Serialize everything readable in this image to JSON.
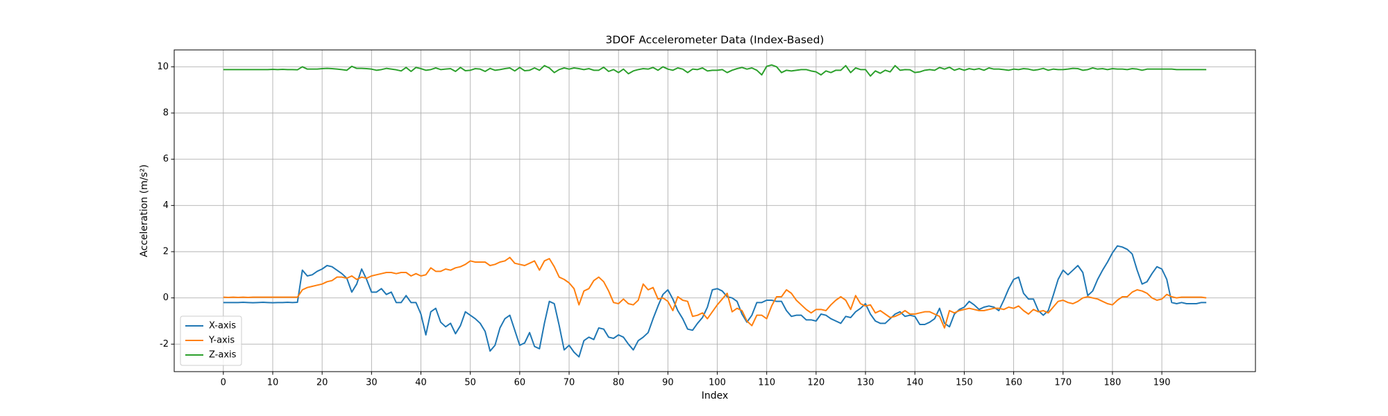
{
  "chart_data": {
    "type": "line",
    "title": "3DOF Accelerometer Data (Index-Based)",
    "xlabel": "Index",
    "ylabel": "Acceleration (m/s²)",
    "x": [
      0,
      1,
      2,
      3,
      4,
      5,
      6,
      7,
      8,
      9,
      10,
      11,
      12,
      13,
      14,
      15,
      16,
      17,
      18,
      19,
      20,
      21,
      22,
      23,
      24,
      25,
      26,
      27,
      28,
      29,
      30,
      31,
      32,
      33,
      34,
      35,
      36,
      37,
      38,
      39,
      40,
      41,
      42,
      43,
      44,
      45,
      46,
      47,
      48,
      49,
      50,
      51,
      52,
      53,
      54,
      55,
      56,
      57,
      58,
      59,
      60,
      61,
      62,
      63,
      64,
      65,
      66,
      67,
      68,
      69,
      70,
      71,
      72,
      73,
      74,
      75,
      76,
      77,
      78,
      79,
      80,
      81,
      82,
      83,
      84,
      85,
      86,
      87,
      88,
      89,
      90,
      91,
      92,
      93,
      94,
      95,
      96,
      97,
      98,
      99,
      100,
      101,
      102,
      103,
      104,
      105,
      106,
      107,
      108,
      109,
      110,
      111,
      112,
      113,
      114,
      115,
      116,
      117,
      118,
      119,
      120,
      121,
      122,
      123,
      124,
      125,
      126,
      127,
      128,
      129,
      130,
      131,
      132,
      133,
      134,
      135,
      136,
      137,
      138,
      139,
      140,
      141,
      142,
      143,
      144,
      145,
      146,
      147,
      148,
      149,
      150,
      151,
      152,
      153,
      154,
      155,
      156,
      157,
      158,
      159,
      160,
      161,
      162,
      163,
      164,
      165,
      166,
      167,
      168,
      169,
      170,
      171,
      172,
      173,
      174,
      175,
      176,
      177,
      178,
      179,
      180,
      181,
      182,
      183,
      184,
      185,
      186,
      187,
      188,
      189,
      190,
      191,
      192,
      193,
      194,
      195,
      196,
      197,
      198,
      199
    ],
    "series": [
      {
        "name": "X-axis",
        "color": "#1f77b4",
        "values": [
          -0.2,
          -0.2,
          -0.2,
          -0.2,
          -0.19,
          -0.2,
          -0.21,
          -0.2,
          -0.19,
          -0.2,
          -0.21,
          -0.2,
          -0.2,
          -0.19,
          -0.2,
          -0.19,
          1.2,
          0.95,
          1.0,
          1.15,
          1.25,
          1.4,
          1.35,
          1.2,
          1.05,
          0.85,
          0.25,
          0.6,
          1.25,
          0.8,
          0.25,
          0.25,
          0.4,
          0.15,
          0.25,
          -0.2,
          -0.2,
          0.1,
          -0.2,
          -0.2,
          -0.7,
          -1.6,
          -0.6,
          -0.45,
          -1.05,
          -1.25,
          -1.1,
          -1.55,
          -1.2,
          -0.6,
          -0.75,
          -0.9,
          -1.1,
          -1.45,
          -2.3,
          -2.05,
          -1.3,
          -0.9,
          -0.75,
          -1.4,
          -2.05,
          -1.95,
          -1.5,
          -2.1,
          -2.2,
          -1.1,
          -0.15,
          -0.25,
          -1.2,
          -2.25,
          -2.05,
          -2.35,
          -2.55,
          -1.85,
          -1.7,
          -1.8,
          -1.3,
          -1.35,
          -1.7,
          -1.75,
          -1.6,
          -1.7,
          -2.0,
          -2.25,
          -1.85,
          -1.7,
          -1.5,
          -0.9,
          -0.35,
          0.15,
          0.35,
          -0.05,
          -0.55,
          -0.9,
          -1.35,
          -1.4,
          -1.1,
          -0.85,
          -0.4,
          0.35,
          0.4,
          0.3,
          0.05,
          0.0,
          -0.15,
          -0.7,
          -1.05,
          -0.75,
          -0.2,
          -0.2,
          -0.1,
          -0.1,
          -0.15,
          -0.15,
          -0.55,
          -0.8,
          -0.75,
          -0.75,
          -0.95,
          -0.95,
          -1.0,
          -0.7,
          -0.75,
          -0.9,
          -1.0,
          -1.1,
          -0.8,
          -0.85,
          -0.6,
          -0.45,
          -0.25,
          -0.7,
          -1.0,
          -1.1,
          -1.1,
          -0.9,
          -0.7,
          -0.6,
          -0.8,
          -0.75,
          -0.8,
          -1.15,
          -1.15,
          -1.05,
          -0.9,
          -0.45,
          -1.1,
          -1.25,
          -0.7,
          -0.5,
          -0.4,
          -0.15,
          -0.3,
          -0.5,
          -0.4,
          -0.35,
          -0.4,
          -0.55,
          -0.1,
          0.4,
          0.8,
          0.9,
          0.2,
          -0.05,
          -0.05,
          -0.55,
          -0.75,
          -0.55,
          0.1,
          0.8,
          1.2,
          1.0,
          1.2,
          1.4,
          1.1,
          0.1,
          0.3,
          0.8,
          1.2,
          1.55,
          1.95,
          2.25,
          2.2,
          2.1,
          1.9,
          1.2,
          0.6,
          0.7,
          1.05,
          1.35,
          1.25,
          0.8,
          -0.2,
          -0.25,
          -0.2,
          -0.25,
          -0.25,
          -0.25,
          -0.2,
          -0.2
        ]
      },
      {
        "name": "Y-axis",
        "color": "#ff7f0e",
        "values": [
          0.03,
          0.02,
          0.03,
          0.02,
          0.03,
          0.02,
          0.03,
          0.03,
          0.03,
          0.03,
          0.03,
          0.03,
          0.03,
          0.03,
          0.03,
          0.03,
          0.35,
          0.45,
          0.5,
          0.55,
          0.6,
          0.7,
          0.75,
          0.9,
          0.9,
          0.85,
          0.95,
          0.8,
          0.9,
          0.85,
          0.95,
          1.0,
          1.05,
          1.1,
          1.1,
          1.05,
          1.1,
          1.1,
          0.95,
          1.05,
          0.95,
          1.0,
          1.3,
          1.15,
          1.15,
          1.25,
          1.2,
          1.3,
          1.35,
          1.45,
          1.6,
          1.55,
          1.55,
          1.55,
          1.4,
          1.45,
          1.55,
          1.6,
          1.75,
          1.5,
          1.45,
          1.4,
          1.5,
          1.6,
          1.2,
          1.6,
          1.7,
          1.35,
          0.9,
          0.8,
          0.65,
          0.4,
          -0.3,
          0.3,
          0.4,
          0.75,
          0.9,
          0.7,
          0.3,
          -0.2,
          -0.25,
          -0.05,
          -0.25,
          -0.3,
          -0.1,
          0.6,
          0.35,
          0.45,
          -0.05,
          0.0,
          -0.15,
          -0.55,
          0.05,
          -0.1,
          -0.15,
          -0.8,
          -0.75,
          -0.65,
          -0.9,
          -0.6,
          -0.3,
          -0.05,
          0.2,
          -0.6,
          -0.45,
          -0.55,
          -1.0,
          -1.2,
          -0.75,
          -0.75,
          -0.9,
          -0.35,
          0.05,
          0.05,
          0.35,
          0.2,
          -0.1,
          -0.3,
          -0.5,
          -0.65,
          -0.5,
          -0.5,
          -0.55,
          -0.3,
          -0.1,
          0.05,
          -0.1,
          -0.5,
          0.1,
          -0.25,
          -0.35,
          -0.3,
          -0.65,
          -0.55,
          -0.7,
          -0.85,
          -0.8,
          -0.7,
          -0.55,
          -0.7,
          -0.7,
          -0.65,
          -0.6,
          -0.6,
          -0.7,
          -0.8,
          -1.3,
          -0.55,
          -0.65,
          -0.55,
          -0.5,
          -0.45,
          -0.5,
          -0.55,
          -0.55,
          -0.5,
          -0.45,
          -0.45,
          -0.5,
          -0.4,
          -0.45,
          -0.35,
          -0.55,
          -0.7,
          -0.5,
          -0.6,
          -0.55,
          -0.65,
          -0.4,
          -0.15,
          -0.1,
          -0.2,
          -0.25,
          -0.15,
          0.0,
          0.05,
          0.0,
          -0.05,
          -0.15,
          -0.25,
          -0.3,
          -0.1,
          0.05,
          0.05,
          0.25,
          0.35,
          0.3,
          0.2,
          0.0,
          -0.1,
          -0.05,
          0.15,
          0.05,
          0.0,
          0.03,
          0.03,
          0.03,
          0.03,
          0.03,
          0.0
        ]
      },
      {
        "name": "Z-axis",
        "color": "#2ca02c",
        "values": [
          9.88,
          9.88,
          9.88,
          9.88,
          9.88,
          9.88,
          9.88,
          9.88,
          9.88,
          9.88,
          9.89,
          9.88,
          9.89,
          9.88,
          9.88,
          9.87,
          10.0,
          9.9,
          9.9,
          9.9,
          9.92,
          9.93,
          9.92,
          9.9,
          9.88,
          9.85,
          10.02,
          9.93,
          9.93,
          9.92,
          9.9,
          9.85,
          9.88,
          9.93,
          9.9,
          9.87,
          9.82,
          9.97,
          9.8,
          9.97,
          9.92,
          9.85,
          9.88,
          9.95,
          9.88,
          9.9,
          9.92,
          9.8,
          9.97,
          9.83,
          9.85,
          9.92,
          9.9,
          9.8,
          9.93,
          9.85,
          9.88,
          9.92,
          9.95,
          9.82,
          9.97,
          9.83,
          9.85,
          9.95,
          9.85,
          10.05,
          9.95,
          9.75,
          9.88,
          9.95,
          9.9,
          9.95,
          9.92,
          9.88,
          9.92,
          9.85,
          9.85,
          9.98,
          9.8,
          9.88,
          9.75,
          9.9,
          9.7,
          9.82,
          9.88,
          9.92,
          9.9,
          9.97,
          9.85,
          10.0,
          9.9,
          9.85,
          9.95,
          9.9,
          9.75,
          9.9,
          9.88,
          9.95,
          9.82,
          9.85,
          9.85,
          9.88,
          9.75,
          9.85,
          9.92,
          9.97,
          9.9,
          9.95,
          9.85,
          9.65,
          10.02,
          10.08,
          10.0,
          9.75,
          9.85,
          9.82,
          9.85,
          9.88,
          9.88,
          9.82,
          9.78,
          9.65,
          9.82,
          9.75,
          9.85,
          9.85,
          10.05,
          9.75,
          9.95,
          9.88,
          9.88,
          9.6,
          9.82,
          9.72,
          9.85,
          9.78,
          10.05,
          9.85,
          9.88,
          9.87,
          9.75,
          9.78,
          9.85,
          9.88,
          9.85,
          9.97,
          9.9,
          9.98,
          9.85,
          9.92,
          9.85,
          9.92,
          9.88,
          9.92,
          9.85,
          9.95,
          9.9,
          9.9,
          9.88,
          9.85,
          9.9,
          9.88,
          9.92,
          9.9,
          9.85,
          9.88,
          9.93,
          9.85,
          9.9,
          9.88,
          9.88,
          9.9,
          9.93,
          9.92,
          9.85,
          9.88,
          9.95,
          9.9,
          9.92,
          9.88,
          9.92,
          9.9,
          9.9,
          9.88,
          9.92,
          9.9,
          9.85,
          9.9,
          9.9,
          9.9,
          9.9,
          9.9,
          9.9,
          9.88,
          9.88,
          9.88,
          9.88,
          9.88,
          9.88,
          9.88
        ]
      }
    ],
    "xlim": [
      -9.95,
      208.95
    ],
    "xticks": [
      0,
      10,
      20,
      30,
      40,
      50,
      60,
      70,
      80,
      90,
      100,
      110,
      120,
      130,
      140,
      150,
      160,
      170,
      180,
      190
    ],
    "ylim": [
      -3.19,
      10.73
    ],
    "yticks": [
      -2,
      0,
      2,
      4,
      6,
      8,
      10
    ],
    "grid": true,
    "legend": "lower left"
  }
}
